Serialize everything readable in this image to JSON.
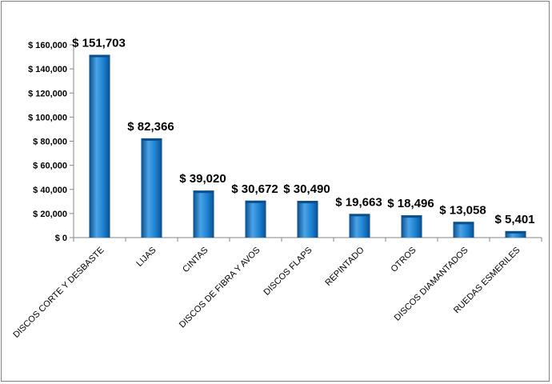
{
  "chart_data": {
    "type": "bar",
    "categories": [
      "DISCOS CORTE Y DESBASTE",
      "LIJAS",
      "CINTAS",
      "DISCOS DE FIBRA Y AVOS",
      "DISCOS FLAPS",
      "REPINTADO",
      "OTROS",
      "DISCOS DIAMANTADOS",
      "RUEDAS ESMERILES"
    ],
    "values": [
      151703,
      82366,
      39020,
      30672,
      30490,
      19663,
      18496,
      13058,
      5401
    ],
    "data_labels": [
      "$ 151,703",
      "$ 82,366",
      "$ 39,020",
      "$ 30,672",
      "$ 30,490",
      "$ 19,663",
      "$ 18,496",
      "$ 13,058",
      "$ 5,401"
    ],
    "title": "",
    "xlabel": "",
    "ylabel": "",
    "ylim": [
      0,
      160000
    ],
    "y_ticks": [
      0,
      20000,
      40000,
      60000,
      80000,
      100000,
      120000,
      140000,
      160000
    ],
    "y_tick_labels": [
      "$ 0",
      "$ 20,000",
      "$ 40,000",
      "$ 60,000",
      "$ 80,000",
      "$ 100,000",
      "$ 120,000",
      "$ 140,000",
      "$ 160,000"
    ],
    "grid": false,
    "legend": "none",
    "colors": {
      "bar_light": "#4aa3e6",
      "bar_mid": "#0f73c6",
      "bar_dark": "#0a4e8c",
      "axis": "#868686"
    }
  }
}
